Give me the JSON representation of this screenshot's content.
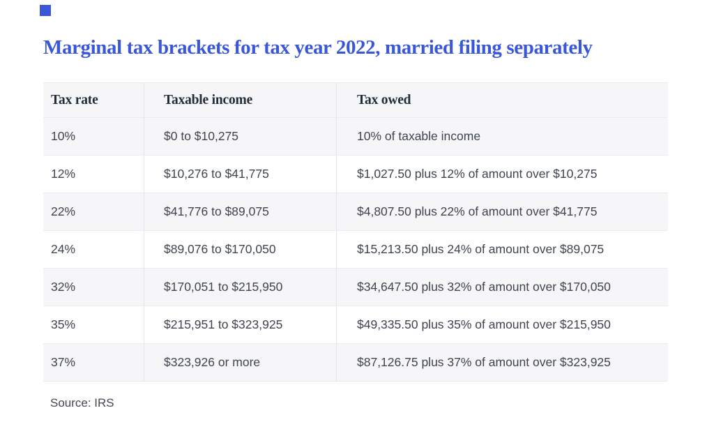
{
  "title": {
    "text": "Marginal tax brackets for tax year 2022, married filing separately"
  },
  "footer": {
    "source_label": "Source: IRS"
  },
  "colors": {
    "title_blue": "#3a57d8",
    "brand_square_blue": "#3a57d8",
    "header_text": "#222c3b",
    "body_text": "#3e4450",
    "zebra_row_gray": "#f6f6f8",
    "divider_gray": "#e4e5e8"
  },
  "chart_data": {
    "type": "table",
    "title": "Marginal tax brackets for tax year 2022, married filing separately",
    "columns": [
      "Tax rate",
      "Taxable income",
      "Tax owed"
    ],
    "rows": [
      [
        "10%",
        "$0 to $10,275",
        "10% of taxable income"
      ],
      [
        "12%",
        "$10,276 to $41,775",
        "$1,027.50 plus 12% of amount over $10,275"
      ],
      [
        "22%",
        "$41,776 to $89,075",
        "$4,807.50 plus 22% of amount over $41,775"
      ],
      [
        "24%",
        "$89,076 to $170,050",
        "$15,213.50 plus 24% of amount over $89,075"
      ],
      [
        "32%",
        "$170,051 to $215,950",
        "$34,647.50 plus 32% of amount over $170,050"
      ],
      [
        "35%",
        "$215,951 to $323,925",
        "$49,335.50 plus 35% of amount over $215,950"
      ],
      [
        "37%",
        "$323,926 or more",
        "$87,126.75 plus 37% of amount over $323,925"
      ]
    ],
    "source": "Source: IRS",
    "layout": {
      "zebra_striping": true,
      "gray_rows": [
        "header",
        "12%",
        "24%",
        "35%"
      ],
      "column_dividers": true
    }
  }
}
